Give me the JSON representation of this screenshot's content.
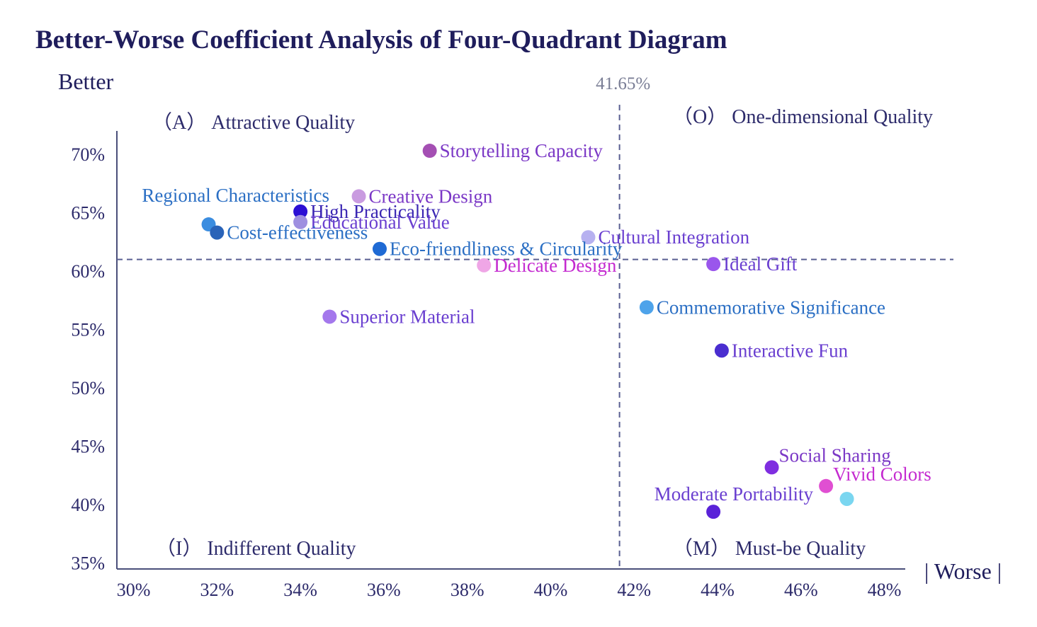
{
  "chart_data": {
    "type": "scatter",
    "title": "Better-Worse Coefficient Analysis of Four-Quadrant Diagram",
    "xlabel": "| Worse |",
    "ylabel": "Better",
    "xlim": [
      29.6,
      48.5
    ],
    "ylim": [
      34.5,
      72
    ],
    "x_ticks": [
      30,
      32,
      34,
      36,
      38,
      40,
      42,
      44,
      46,
      48
    ],
    "x_tick_labels": [
      "30%",
      "32%",
      "34%",
      "36%",
      "38%",
      "40%",
      "42%",
      "44%",
      "46%",
      "48%"
    ],
    "y_ticks": [
      35,
      40,
      45,
      50,
      55,
      60,
      65,
      70
    ],
    "y_tick_labels": [
      "35%",
      "40%",
      "45%",
      "50%",
      "55%",
      "60%",
      "65%",
      "70%"
    ],
    "reference_lines": {
      "x": 41.65,
      "x_label": "41.65%",
      "y": 61.0
    },
    "quadrants": {
      "attractive": "（A） Attractive Quality",
      "one_dimensional": "（O） One-dimensional Quality",
      "indifferent": "（I） Indifferent Quality",
      "must_be": "（M） Must-be Quality"
    },
    "points": [
      {
        "name": "Storytelling Capacity",
        "x": 37.1,
        "y": 70.3,
        "color": "#a44fb3",
        "label_color": "#7b38c6",
        "anchor": "right"
      },
      {
        "name": "Creative Design",
        "x": 35.4,
        "y": 66.4,
        "color": "#c99be0",
        "label_color": "#7b38c6",
        "anchor": "right"
      },
      {
        "name": "High Practicality",
        "x": 34.0,
        "y": 65.1,
        "color": "#2b0fd4",
        "label_color": "#3a26b3",
        "anchor": "right"
      },
      {
        "name": "Educational Value",
        "x": 34.0,
        "y": 64.2,
        "color": "#9e8fe0",
        "label_color": "#6a3fd0",
        "anchor": "right"
      },
      {
        "name": "Regional Characteristics",
        "x": 31.8,
        "y": 64.0,
        "color": "#3b8de0",
        "label_color": "#2b6fc4",
        "anchor": "above-left"
      },
      {
        "name": "Cost-effectiveness",
        "x": 32.0,
        "y": 63.3,
        "color": "#2a63b8",
        "label_color": "#2b6fc4",
        "anchor": "right"
      },
      {
        "name": "Eco-friendliness & Circularity",
        "x": 35.9,
        "y": 61.9,
        "color": "#1f6ad4",
        "label_color": "#2b6fc4",
        "anchor": "right"
      },
      {
        "name": "Cultural Integration",
        "x": 40.9,
        "y": 62.9,
        "color": "#b7b1f0",
        "label_color": "#6a3fd0",
        "anchor": "right"
      },
      {
        "name": "Delicate Design",
        "x": 38.4,
        "y": 60.5,
        "color": "#efa6e6",
        "label_color": "#c42ad0",
        "anchor": "right"
      },
      {
        "name": "Superior Material",
        "x": 34.7,
        "y": 56.1,
        "color": "#a478ec",
        "label_color": "#6a3fd0",
        "anchor": "right"
      },
      {
        "name": "Ideal Gift",
        "x": 43.9,
        "y": 60.6,
        "color": "#9a56ec",
        "label_color": "#6a3fd0",
        "anchor": "right"
      },
      {
        "name": "Commemorative Significance",
        "x": 42.3,
        "y": 56.9,
        "color": "#4ea3ea",
        "label_color": "#2b6fc4",
        "anchor": "right"
      },
      {
        "name": "Interactive Fun",
        "x": 44.1,
        "y": 53.2,
        "color": "#4a2ed0",
        "label_color": "#6a3fd0",
        "anchor": "right"
      },
      {
        "name": "Social Sharing",
        "x": 45.3,
        "y": 43.2,
        "color": "#7f2ee0",
        "label_color": "#7b38c6",
        "anchor": "above-right"
      },
      {
        "name": "Vivid Colors",
        "x": 46.6,
        "y": 41.6,
        "color": "#e04fd2",
        "label_color": "#c42ad0",
        "anchor": "above-right"
      },
      {
        "name": "",
        "x": 47.1,
        "y": 40.5,
        "color": "#7ad6f0",
        "label_color": "#2b6fc4",
        "anchor": "none"
      },
      {
        "name": "Moderate Portability",
        "x": 43.9,
        "y": 39.4,
        "color": "#5a22d8",
        "label_color": "#6a3fd0",
        "anchor": "above-left"
      }
    ]
  }
}
